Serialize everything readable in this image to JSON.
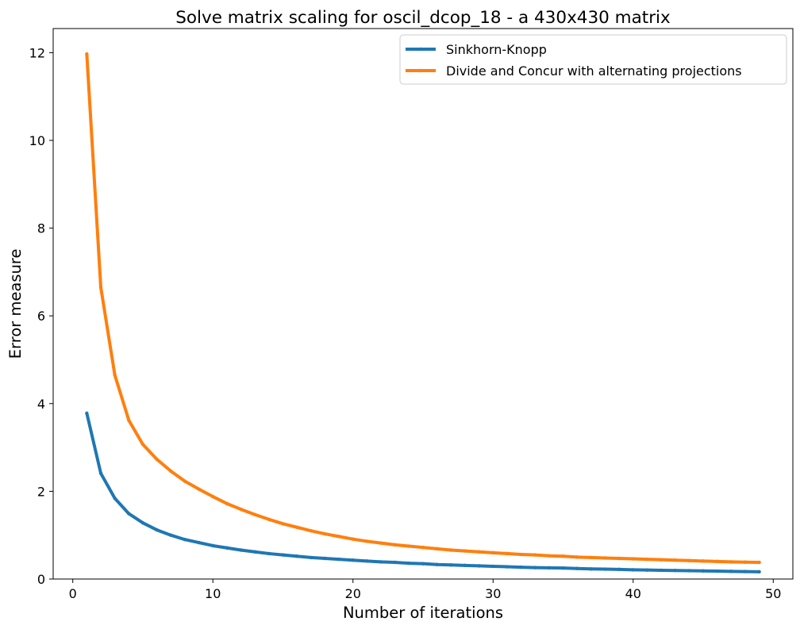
{
  "chart_data": {
    "type": "line",
    "title": "Solve matrix scaling for oscil_dcop_18 - a 430x430 matrix",
    "xlabel": "Number of iterations",
    "ylabel": "Error measure",
    "xlim": [
      -1.4,
      51.4
    ],
    "ylim": [
      0,
      12.55
    ],
    "xticks": [
      0,
      10,
      20,
      30,
      40,
      50
    ],
    "yticks": [
      0,
      2,
      4,
      6,
      8,
      10,
      12
    ],
    "grid": false,
    "legend_position": "top-right",
    "x": [
      1,
      2,
      3,
      4,
      5,
      6,
      7,
      8,
      9,
      10,
      11,
      12,
      13,
      14,
      15,
      16,
      17,
      18,
      19,
      20,
      21,
      22,
      23,
      24,
      25,
      26,
      27,
      28,
      29,
      30,
      31,
      32,
      33,
      34,
      35,
      36,
      37,
      38,
      39,
      40,
      41,
      42,
      43,
      44,
      45,
      46,
      47,
      48,
      49
    ],
    "series": [
      {
        "name": "Sinkhorn-Knopp",
        "color": "#1f77b4",
        "values": [
          3.78,
          2.41,
          1.84,
          1.49,
          1.28,
          1.12,
          1.0,
          0.9,
          0.83,
          0.76,
          0.71,
          0.66,
          0.62,
          0.58,
          0.55,
          0.52,
          0.49,
          0.47,
          0.45,
          0.43,
          0.41,
          0.39,
          0.38,
          0.36,
          0.35,
          0.33,
          0.32,
          0.31,
          0.3,
          0.29,
          0.28,
          0.27,
          0.26,
          0.255,
          0.25,
          0.24,
          0.23,
          0.225,
          0.22,
          0.21,
          0.205,
          0.2,
          0.195,
          0.19,
          0.185,
          0.18,
          0.175,
          0.17,
          0.165
        ]
      },
      {
        "name": "Divide and Concur with alternating projections",
        "color": "#ff7f0e",
        "values": [
          11.97,
          6.65,
          4.65,
          3.62,
          3.07,
          2.73,
          2.46,
          2.23,
          2.05,
          1.88,
          1.72,
          1.59,
          1.47,
          1.36,
          1.26,
          1.18,
          1.1,
          1.03,
          0.97,
          0.91,
          0.86,
          0.82,
          0.78,
          0.75,
          0.72,
          0.69,
          0.66,
          0.64,
          0.62,
          0.6,
          0.58,
          0.56,
          0.55,
          0.53,
          0.52,
          0.5,
          0.49,
          0.48,
          0.47,
          0.46,
          0.45,
          0.44,
          0.43,
          0.42,
          0.41,
          0.4,
          0.39,
          0.385,
          0.38
        ]
      }
    ]
  }
}
